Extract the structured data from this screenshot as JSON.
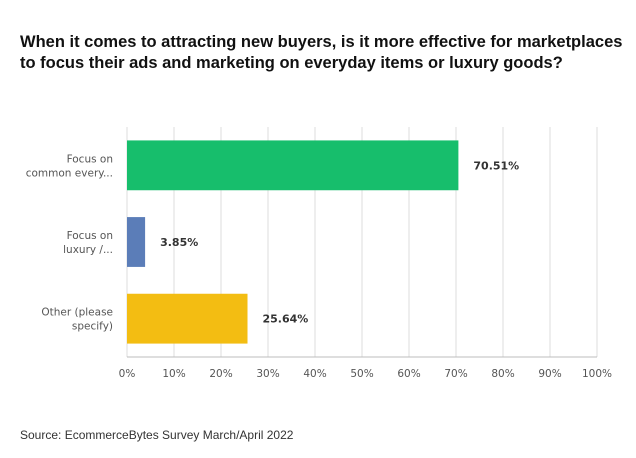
{
  "title": "When it comes to attracting new buyers, is it more effective for marketplaces to focus their ads and marketing on everyday items or luxury goods?",
  "source": "Source: EcommerceBytes Survey March/April 2022",
  "chart_data": {
    "type": "bar",
    "orientation": "horizontal",
    "categories": [
      [
        "Focus on",
        "common every..."
      ],
      [
        "Focus on",
        "luxury /..."
      ],
      [
        "Other (please",
        "specify)"
      ]
    ],
    "values": [
      70.51,
      3.85,
      25.64
    ],
    "value_labels": [
      "70.51%",
      "3.85%",
      "25.64%"
    ],
    "colors": [
      "#17BE6C",
      "#5B7DB8",
      "#F3BD12"
    ],
    "x_ticks": [
      "0%",
      "10%",
      "20%",
      "30%",
      "40%",
      "50%",
      "60%",
      "70%",
      "80%",
      "90%",
      "100%"
    ],
    "xlim": [
      0,
      100
    ],
    "grid": true
  }
}
